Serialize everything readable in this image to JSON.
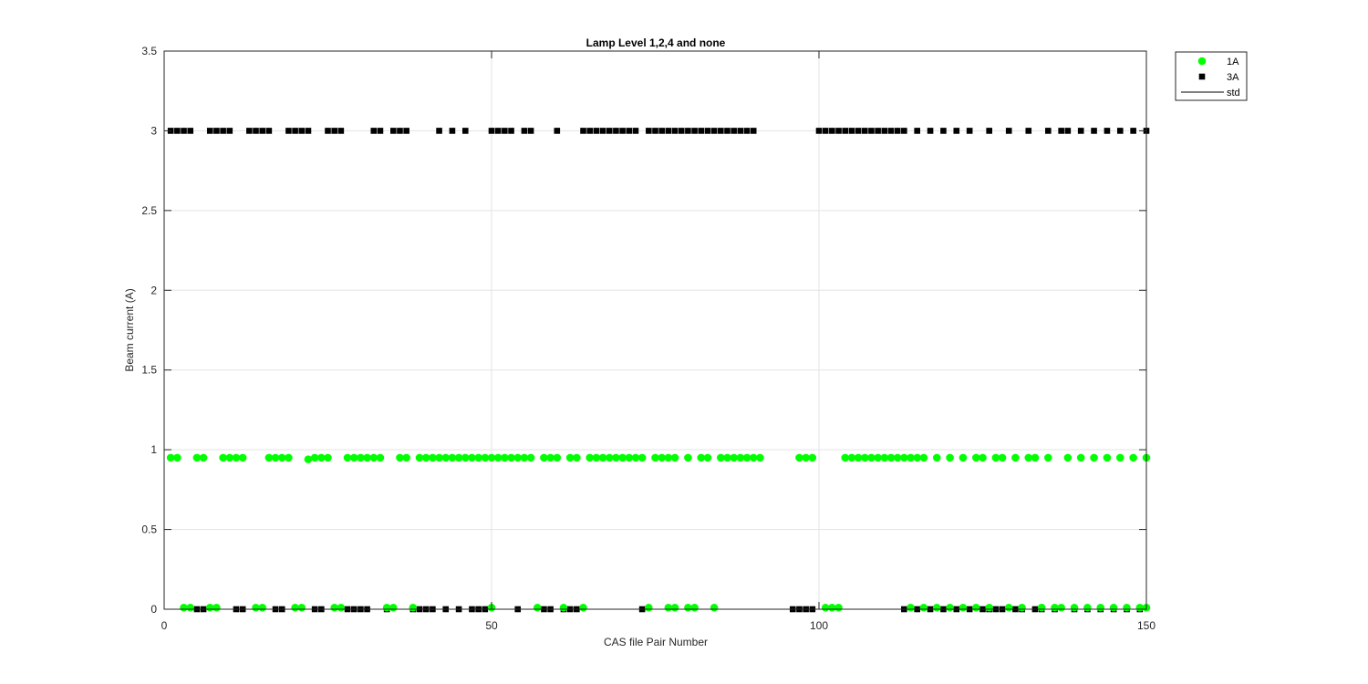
{
  "chart_data": {
    "type": "scatter",
    "title": "Lamp Level 1,2,4 and none",
    "xlabel": "CAS file Pair Number",
    "ylabel": "Beam current (A)",
    "xlim": [
      0,
      150
    ],
    "ylim": [
      0,
      3.5
    ],
    "x_ticks": [
      0,
      50,
      100,
      150
    ],
    "y_ticks": [
      0,
      0.5,
      1,
      1.5,
      2,
      2.5,
      3,
      3.5
    ],
    "x_tick_labels": [
      "0",
      "50",
      "100",
      "150"
    ],
    "y_tick_labels": [
      "0",
      "0.5",
      "1",
      "1.5",
      "2",
      "2.5",
      "3",
      "3.5"
    ],
    "grid": true,
    "legend_position": "outside-top-right",
    "legend": [
      {
        "name": "1A",
        "marker": "circle",
        "color": "#00ff00"
      },
      {
        "name": "3A",
        "marker": "square",
        "color": "#000000"
      },
      {
        "name": "std",
        "marker": "line",
        "color": "#000000"
      }
    ],
    "series": [
      {
        "name": "1A",
        "marker": "circle",
        "color": "#00ff00",
        "points": [
          [
            1,
            0.95
          ],
          [
            2,
            0.95
          ],
          [
            3,
            0.01
          ],
          [
            4,
            0.01
          ],
          [
            5,
            0.95
          ],
          [
            6,
            0.95
          ],
          [
            7,
            0.01
          ],
          [
            8,
            0.01
          ],
          [
            9,
            0.95
          ],
          [
            10,
            0.95
          ],
          [
            11,
            0.95
          ],
          [
            12,
            0.95
          ],
          [
            14,
            0.01
          ],
          [
            15,
            0.01
          ],
          [
            16,
            0.95
          ],
          [
            17,
            0.95
          ],
          [
            18,
            0.95
          ],
          [
            19,
            0.95
          ],
          [
            20,
            0.01
          ],
          [
            21,
            0.01
          ],
          [
            22,
            0.94
          ],
          [
            23,
            0.95
          ],
          [
            24,
            0.95
          ],
          [
            25,
            0.95
          ],
          [
            26,
            0.01
          ],
          [
            27,
            0.01
          ],
          [
            28,
            0.95
          ],
          [
            29,
            0.95
          ],
          [
            30,
            0.95
          ],
          [
            31,
            0.95
          ],
          [
            32,
            0.95
          ],
          [
            33,
            0.95
          ],
          [
            34,
            0.01
          ],
          [
            35,
            0.01
          ],
          [
            36,
            0.95
          ],
          [
            37,
            0.95
          ],
          [
            38,
            0.01
          ],
          [
            39,
            0.95
          ],
          [
            40,
            0.95
          ],
          [
            41,
            0.95
          ],
          [
            42,
            0.95
          ],
          [
            43,
            0.95
          ],
          [
            44,
            0.95
          ],
          [
            45,
            0.95
          ],
          [
            46,
            0.95
          ],
          [
            47,
            0.95
          ],
          [
            48,
            0.95
          ],
          [
            49,
            0.95
          ],
          [
            50,
            0.95
          ],
          [
            50,
            0.01
          ],
          [
            51,
            0.95
          ],
          [
            52,
            0.95
          ],
          [
            53,
            0.95
          ],
          [
            54,
            0.95
          ],
          [
            55,
            0.95
          ],
          [
            56,
            0.95
          ],
          [
            57,
            0.01
          ],
          [
            58,
            0.95
          ],
          [
            59,
            0.95
          ],
          [
            60,
            0.95
          ],
          [
            61,
            0.01
          ],
          [
            62,
            0.95
          ],
          [
            63,
            0.95
          ],
          [
            64,
            0.01
          ],
          [
            65,
            0.95
          ],
          [
            66,
            0.95
          ],
          [
            67,
            0.95
          ],
          [
            68,
            0.95
          ],
          [
            69,
            0.95
          ],
          [
            70,
            0.95
          ],
          [
            71,
            0.95
          ],
          [
            72,
            0.95
          ],
          [
            73,
            0.95
          ],
          [
            74,
            0.01
          ],
          [
            75,
            0.95
          ],
          [
            76,
            0.95
          ],
          [
            77,
            0.95
          ],
          [
            78,
            0.95
          ],
          [
            77,
            0.01
          ],
          [
            78,
            0.01
          ],
          [
            80,
            0.95
          ],
          [
            80,
            0.01
          ],
          [
            81,
            0.01
          ],
          [
            82,
            0.95
          ],
          [
            83,
            0.95
          ],
          [
            84,
            0.01
          ],
          [
            85,
            0.95
          ],
          [
            86,
            0.95
          ],
          [
            87,
            0.95
          ],
          [
            88,
            0.95
          ],
          [
            89,
            0.95
          ],
          [
            90,
            0.95
          ],
          [
            91,
            0.95
          ],
          [
            97,
            0.95
          ],
          [
            98,
            0.95
          ],
          [
            99,
            0.95
          ],
          [
            101,
            0.01
          ],
          [
            102,
            0.01
          ],
          [
            103,
            0.01
          ],
          [
            104,
            0.95
          ],
          [
            105,
            0.95
          ],
          [
            106,
            0.95
          ],
          [
            107,
            0.95
          ],
          [
            108,
            0.95
          ],
          [
            109,
            0.95
          ],
          [
            110,
            0.95
          ],
          [
            111,
            0.95
          ],
          [
            112,
            0.95
          ],
          [
            113,
            0.95
          ],
          [
            114,
            0.95
          ],
          [
            115,
            0.95
          ],
          [
            114,
            0.01
          ],
          [
            116,
            0.95
          ],
          [
            116,
            0.01
          ],
          [
            118,
            0.95
          ],
          [
            118,
            0.01
          ],
          [
            120,
            0.95
          ],
          [
            120,
            0.01
          ],
          [
            122,
            0.95
          ],
          [
            122,
            0.01
          ],
          [
            124,
            0.95
          ],
          [
            124,
            0.01
          ],
          [
            125,
            0.95
          ],
          [
            126,
            0.01
          ],
          [
            127,
            0.95
          ],
          [
            128,
            0.95
          ],
          [
            129,
            0.01
          ],
          [
            130,
            0.95
          ],
          [
            131,
            0.01
          ],
          [
            132,
            0.95
          ],
          [
            133,
            0.95
          ],
          [
            134,
            0.01
          ],
          [
            135,
            0.95
          ],
          [
            136,
            0.01
          ],
          [
            137,
            0.01
          ],
          [
            138,
            0.95
          ],
          [
            139,
            0.01
          ],
          [
            140,
            0.95
          ],
          [
            141,
            0.01
          ],
          [
            142,
            0.95
          ],
          [
            143,
            0.01
          ],
          [
            144,
            0.95
          ],
          [
            145,
            0.01
          ],
          [
            146,
            0.95
          ],
          [
            147,
            0.01
          ],
          [
            148,
            0.95
          ],
          [
            149,
            0.01
          ],
          [
            150,
            0.95
          ],
          [
            150,
            0.01
          ]
        ]
      },
      {
        "name": "3A",
        "marker": "square",
        "color": "#000000",
        "points": [
          [
            1,
            3
          ],
          [
            2,
            3
          ],
          [
            3,
            3
          ],
          [
            4,
            3
          ],
          [
            5,
            0
          ],
          [
            6,
            0
          ],
          [
            7,
            3
          ],
          [
            8,
            3
          ],
          [
            9,
            3
          ],
          [
            10,
            3
          ],
          [
            11,
            0
          ],
          [
            12,
            0
          ],
          [
            13,
            3
          ],
          [
            14,
            3
          ],
          [
            15,
            3
          ],
          [
            16,
            3
          ],
          [
            17,
            0
          ],
          [
            18,
            0
          ],
          [
            19,
            3
          ],
          [
            20,
            3
          ],
          [
            21,
            3
          ],
          [
            22,
            3
          ],
          [
            23,
            0
          ],
          [
            24,
            0
          ],
          [
            25,
            3
          ],
          [
            26,
            3
          ],
          [
            27,
            3
          ],
          [
            28,
            0
          ],
          [
            29,
            0
          ],
          [
            30,
            0
          ],
          [
            31,
            0
          ],
          [
            32,
            3
          ],
          [
            33,
            3
          ],
          [
            34,
            0
          ],
          [
            35,
            3
          ],
          [
            36,
            3
          ],
          [
            37,
            3
          ],
          [
            38,
            0
          ],
          [
            39,
            0
          ],
          [
            40,
            0
          ],
          [
            41,
            0
          ],
          [
            42,
            3
          ],
          [
            43,
            0
          ],
          [
            44,
            3
          ],
          [
            45,
            0
          ],
          [
            46,
            3
          ],
          [
            47,
            0
          ],
          [
            48,
            0
          ],
          [
            49,
            0
          ],
          [
            50,
            3
          ],
          [
            51,
            3
          ],
          [
            52,
            3
          ],
          [
            53,
            3
          ],
          [
            54,
            0
          ],
          [
            55,
            3
          ],
          [
            56,
            3
          ],
          [
            58,
            0
          ],
          [
            59,
            0
          ],
          [
            60,
            3
          ],
          [
            61,
            0
          ],
          [
            62,
            0
          ],
          [
            63,
            0
          ],
          [
            64,
            3
          ],
          [
            65,
            3
          ],
          [
            66,
            3
          ],
          [
            67,
            3
          ],
          [
            68,
            3
          ],
          [
            69,
            3
          ],
          [
            70,
            3
          ],
          [
            71,
            3
          ],
          [
            72,
            3
          ],
          [
            73,
            0
          ],
          [
            74,
            3
          ],
          [
            75,
            3
          ],
          [
            76,
            3
          ],
          [
            77,
            3
          ],
          [
            78,
            3
          ],
          [
            79,
            3
          ],
          [
            80,
            3
          ],
          [
            81,
            3
          ],
          [
            82,
            3
          ],
          [
            83,
            3
          ],
          [
            84,
            3
          ],
          [
            85,
            3
          ],
          [
            86,
            3
          ],
          [
            87,
            3
          ],
          [
            88,
            3
          ],
          [
            89,
            3
          ],
          [
            90,
            3
          ],
          [
            96,
            0
          ],
          [
            97,
            0
          ],
          [
            98,
            0
          ],
          [
            99,
            0
          ],
          [
            100,
            3
          ],
          [
            101,
            3
          ],
          [
            102,
            3
          ],
          [
            103,
            3
          ],
          [
            104,
            3
          ],
          [
            105,
            3
          ],
          [
            106,
            3
          ],
          [
            107,
            3
          ],
          [
            108,
            3
          ],
          [
            109,
            3
          ],
          [
            110,
            3
          ],
          [
            111,
            3
          ],
          [
            112,
            3
          ],
          [
            113,
            0
          ],
          [
            113,
            3
          ],
          [
            115,
            0
          ],
          [
            115,
            3
          ],
          [
            117,
            0
          ],
          [
            117,
            3
          ],
          [
            119,
            0
          ],
          [
            119,
            3
          ],
          [
            121,
            0
          ],
          [
            121,
            3
          ],
          [
            123,
            0
          ],
          [
            123,
            3
          ],
          [
            125,
            0
          ],
          [
            126,
            0
          ],
          [
            126,
            3
          ],
          [
            127,
            0
          ],
          [
            128,
            0
          ],
          [
            129,
            3
          ],
          [
            130,
            0
          ],
          [
            131,
            0
          ],
          [
            132,
            3
          ],
          [
            133,
            0
          ],
          [
            134,
            0
          ],
          [
            135,
            3
          ],
          [
            136,
            0
          ],
          [
            137,
            3
          ],
          [
            138,
            3
          ],
          [
            139,
            0
          ],
          [
            140,
            3
          ],
          [
            141,
            0
          ],
          [
            142,
            3
          ],
          [
            143,
            0
          ],
          [
            144,
            3
          ],
          [
            145,
            0
          ],
          [
            146,
            3
          ],
          [
            147,
            0
          ],
          [
            148,
            3
          ],
          [
            149,
            0
          ],
          [
            150,
            3
          ]
        ]
      }
    ]
  }
}
